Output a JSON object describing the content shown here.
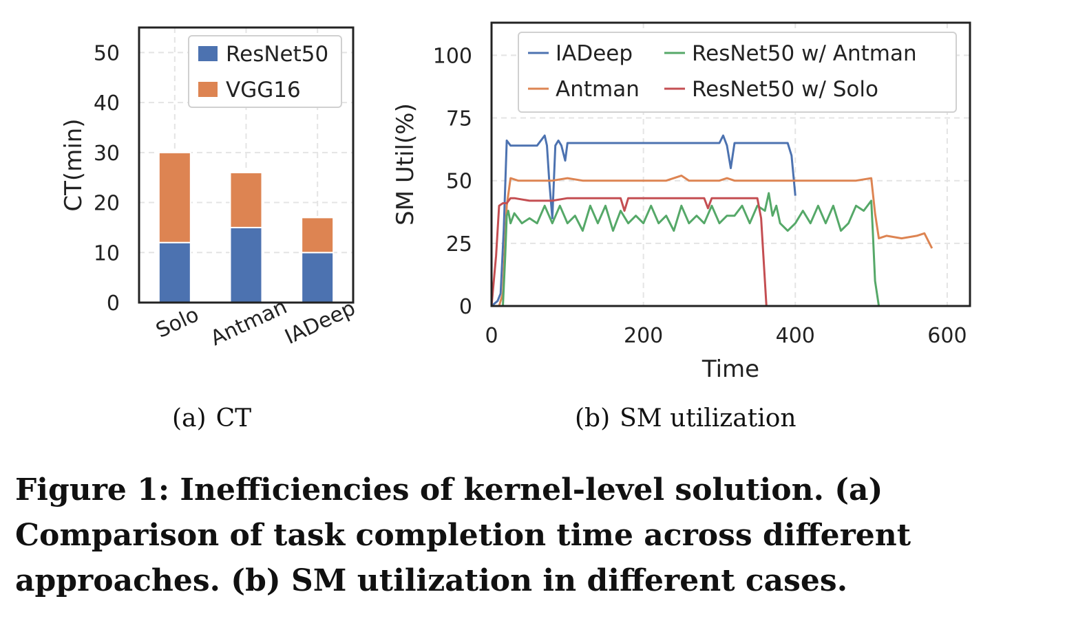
{
  "subcaptions": {
    "a": {
      "label": "(a)",
      "text": "CT"
    },
    "b": {
      "label": "(b)",
      "text": "SM utilization"
    }
  },
  "caption": "Figure 1: Inefficiencies of kernel-level solution. (a) Comparison of task completion time across different approaches. (b) SM utilization in different cases.",
  "chart_data": [
    {
      "type": "bar",
      "stacked": true,
      "categories": [
        "Solo",
        "Antman",
        "IADeep"
      ],
      "series": [
        {
          "name": "ResNet50",
          "values": [
            12,
            15,
            10
          ],
          "color": "#4c72b0"
        },
        {
          "name": "VGG16",
          "values": [
            18,
            11,
            7
          ],
          "color": "#dd8452"
        }
      ],
      "title": "",
      "xlabel": "",
      "ylabel": "CT(min)",
      "ylim": [
        0,
        55
      ],
      "yticks": [
        0,
        10,
        20,
        30,
        40,
        50
      ],
      "grid": true,
      "legend": "top-right"
    },
    {
      "type": "line",
      "title": "",
      "xlabel": "Time",
      "ylabel": "SM Util(%)",
      "xlim": [
        0,
        630
      ],
      "ylim": [
        0,
        113
      ],
      "xticks": [
        0,
        200,
        400,
        600
      ],
      "yticks": [
        0,
        25,
        50,
        75,
        100
      ],
      "grid": true,
      "legend": "top",
      "series": [
        {
          "name": "IADeep",
          "color": "#4c72b0",
          "x": [
            0,
            8,
            12,
            16,
            20,
            25,
            30,
            40,
            50,
            60,
            70,
            73,
            76,
            80,
            84,
            88,
            92,
            97,
            100,
            105,
            110,
            120,
            130,
            150,
            180,
            200,
            230,
            260,
            280,
            300,
            305,
            310,
            315,
            320,
            340,
            370,
            390,
            395,
            400
          ],
          "y": [
            0,
            2,
            5,
            30,
            66,
            64,
            64,
            64,
            64,
            64,
            68,
            64,
            50,
            35,
            64,
            66,
            64,
            58,
            65,
            65,
            65,
            65,
            65,
            65,
            65,
            65,
            65,
            65,
            65,
            65,
            68,
            64,
            55,
            65,
            65,
            65,
            65,
            60,
            44
          ]
        },
        {
          "name": "Antman",
          "color": "#dd8452",
          "x": [
            0,
            10,
            15,
            20,
            25,
            35,
            50,
            80,
            100,
            120,
            150,
            180,
            200,
            230,
            250,
            260,
            280,
            300,
            310,
            320,
            350,
            380,
            400,
            420,
            450,
            480,
            500,
            505,
            510,
            520,
            540,
            560,
            570,
            575,
            580
          ],
          "y": [
            0,
            0,
            5,
            40,
            51,
            50,
            50,
            50,
            51,
            50,
            50,
            50,
            50,
            50,
            52,
            50,
            50,
            50,
            51,
            50,
            50,
            50,
            50,
            50,
            50,
            50,
            51,
            37,
            27,
            28,
            27,
            28,
            29,
            26,
            23
          ]
        },
        {
          "name": "ResNet50 w/ Antman",
          "color": "#55a868",
          "x": [
            0,
            12,
            15,
            18,
            20,
            22,
            25,
            30,
            40,
            50,
            60,
            70,
            80,
            90,
            100,
            110,
            120,
            130,
            140,
            150,
            160,
            170,
            180,
            190,
            200,
            210,
            220,
            230,
            240,
            250,
            260,
            270,
            280,
            290,
            300,
            310,
            320,
            330,
            340,
            350,
            360,
            365,
            370,
            375,
            380,
            390,
            400,
            410,
            420,
            430,
            440,
            450,
            460,
            470,
            480,
            490,
            500,
            502,
            505,
            510,
            515
          ],
          "y": [
            0,
            0,
            0,
            20,
            36,
            38,
            33,
            37,
            33,
            35,
            33,
            40,
            33,
            40,
            33,
            36,
            30,
            40,
            33,
            40,
            30,
            38,
            33,
            36,
            33,
            40,
            33,
            36,
            30,
            40,
            33,
            36,
            33,
            40,
            33,
            36,
            36,
            40,
            33,
            40,
            38,
            45,
            36,
            40,
            33,
            30,
            33,
            38,
            33,
            40,
            33,
            40,
            30,
            33,
            40,
            38,
            42,
            30,
            10,
            0,
            0
          ]
        },
        {
          "name": "ResNet50 w/ Solo",
          "color": "#c44e52",
          "x": [
            0,
            3,
            6,
            10,
            15,
            20,
            25,
            30,
            50,
            80,
            100,
            120,
            150,
            170,
            175,
            180,
            200,
            230,
            250,
            270,
            280,
            285,
            290,
            300,
            320,
            340,
            350,
            355,
            358,
            362,
            365
          ],
          "y": [
            0,
            10,
            20,
            40,
            41,
            41,
            43,
            43,
            42,
            42,
            43,
            43,
            43,
            43,
            38,
            43,
            43,
            43,
            43,
            43,
            43,
            39,
            43,
            43,
            43,
            43,
            43,
            35,
            20,
            0,
            0
          ]
        }
      ]
    }
  ]
}
